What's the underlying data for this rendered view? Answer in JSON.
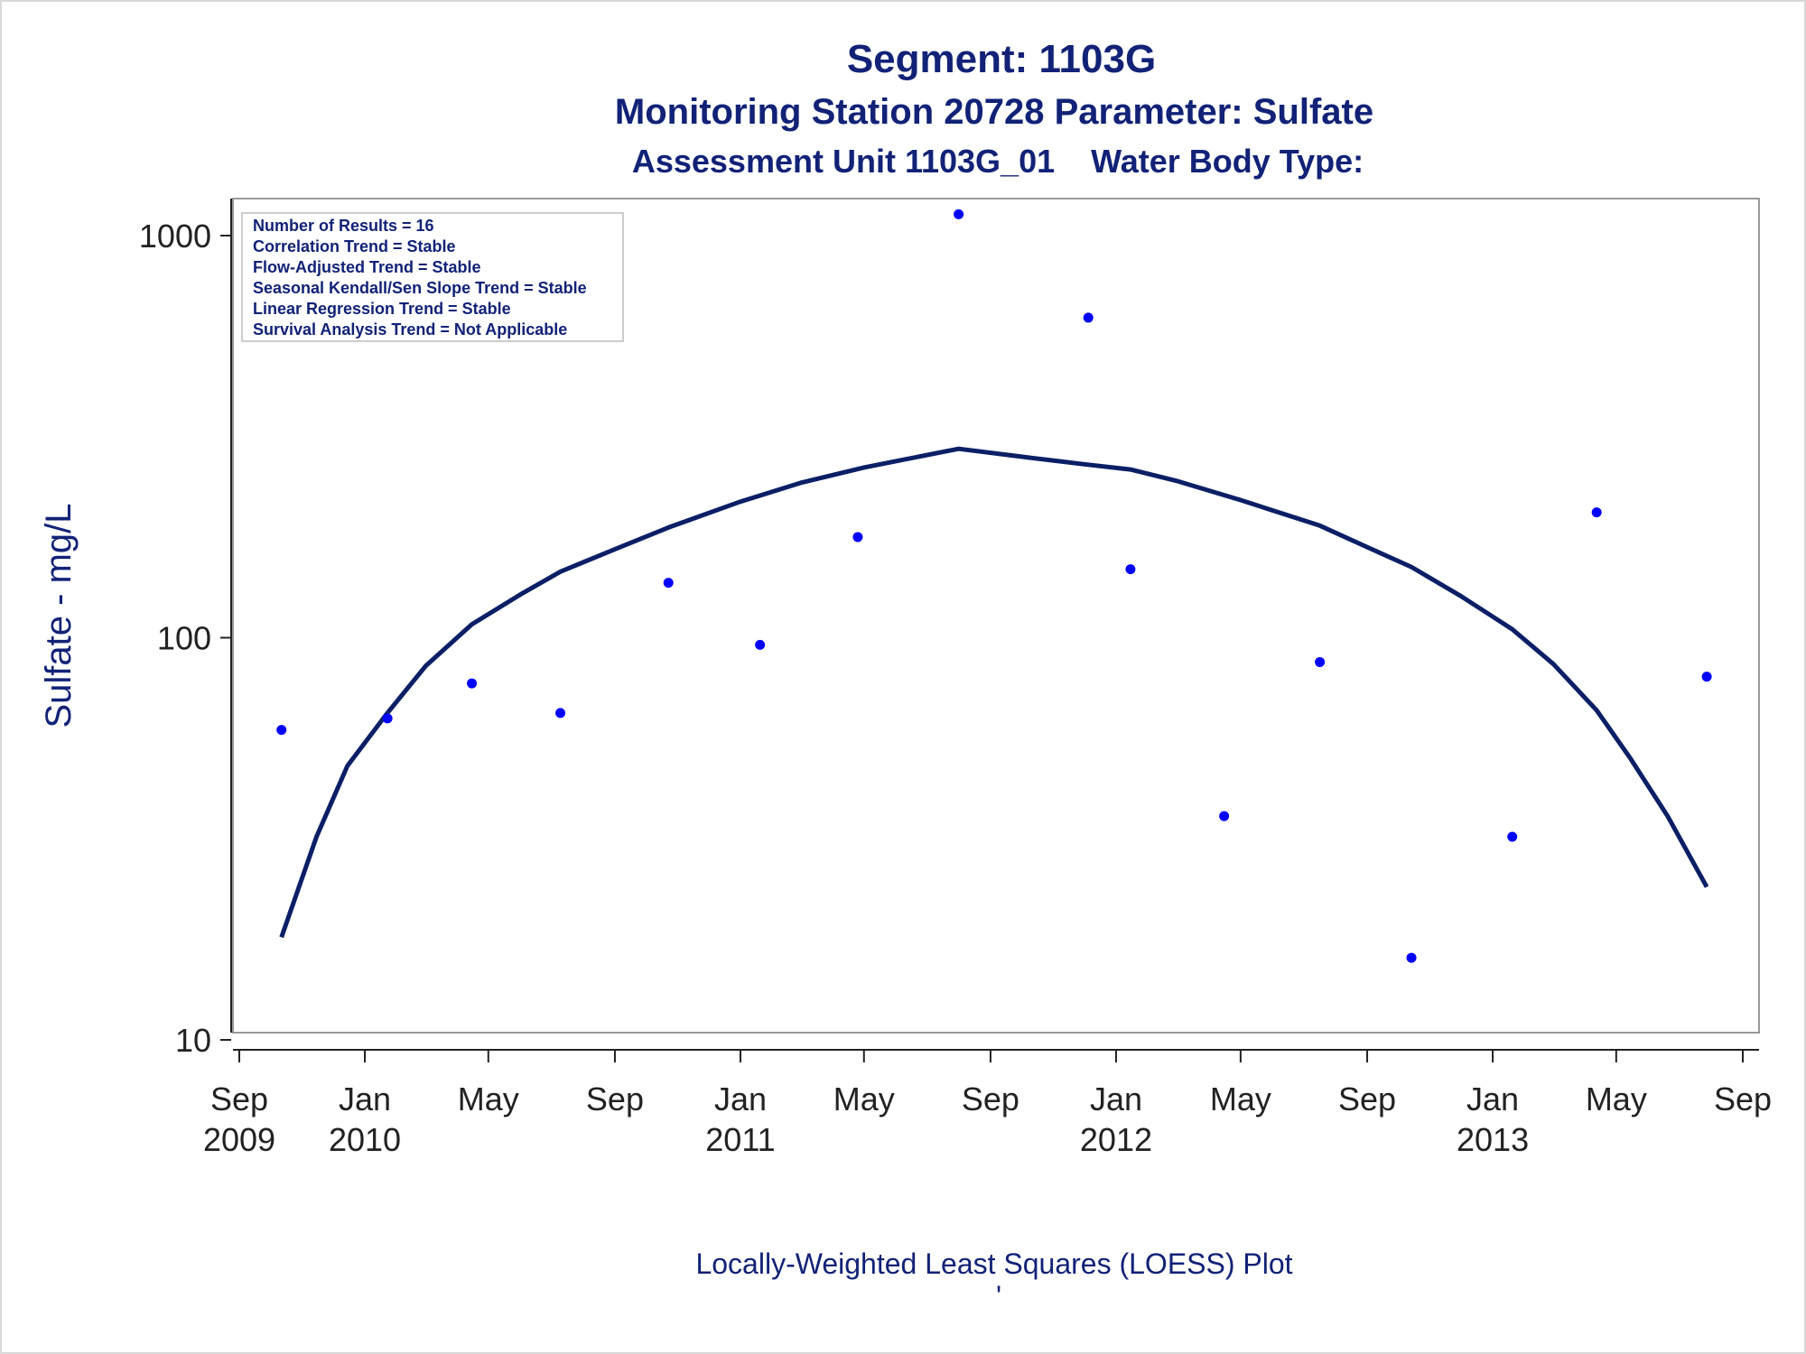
{
  "titles": {
    "line1": "Segment: 1103G",
    "line2": "Monitoring Station 20728 Parameter: Sulfate",
    "line3": "Assessment Unit 1103G_01    Water Body Type:"
  },
  "footnote": "Locally-Weighted Least Squares (LOESS) Plot",
  "footnote_mark": "'",
  "stats_box": [
    "Number of Results = 16",
    "Correlation Trend = Stable",
    "Flow-Adjusted Trend = Stable",
    "Seasonal Kendall/Sen Slope Trend = Stable",
    "Linear Regression Trend = Stable",
    "Survival Analysis Trend = Not Applicable"
  ],
  "colors": {
    "title": "#112277",
    "points": "#0000ff",
    "loess": "#0b1f66",
    "frame": "#999999"
  },
  "chart_data": {
    "type": "scatter",
    "ylabel": "Sulfate - mg/L",
    "y_scale": "log",
    "ylim": [
      10,
      1200
    ],
    "y_ticks": [
      {
        "value": 10,
        "label": "10"
      },
      {
        "value": 100,
        "label": "100"
      },
      {
        "value": 1000,
        "label": "1000"
      }
    ],
    "xlim": [
      "2009-09-01",
      "2013-09-01"
    ],
    "x_ticks": [
      {
        "date": "2009-09-01",
        "label": "Sep",
        "year": "2009"
      },
      {
        "date": "2010-01-01",
        "label": "Jan",
        "year": "2010"
      },
      {
        "date": "2010-05-01",
        "label": "May",
        "year": ""
      },
      {
        "date": "2010-09-01",
        "label": "Sep",
        "year": ""
      },
      {
        "date": "2011-01-01",
        "label": "Jan",
        "year": "2011"
      },
      {
        "date": "2011-05-01",
        "label": "May",
        "year": ""
      },
      {
        "date": "2011-09-01",
        "label": "Sep",
        "year": ""
      },
      {
        "date": "2012-01-01",
        "label": "Jan",
        "year": "2012"
      },
      {
        "date": "2012-05-01",
        "label": "May",
        "year": ""
      },
      {
        "date": "2012-09-01",
        "label": "Sep",
        "year": ""
      },
      {
        "date": "2013-01-01",
        "label": "Jan",
        "year": "2013"
      },
      {
        "date": "2013-05-01",
        "label": "May",
        "year": ""
      },
      {
        "date": "2013-09-01",
        "label": "Sep",
        "year": ""
      }
    ],
    "points": [
      {
        "x": "2009-10-12",
        "y": 59
      },
      {
        "x": "2010-01-23",
        "y": 63
      },
      {
        "x": "2010-04-15",
        "y": 77
      },
      {
        "x": "2010-07-10",
        "y": 65
      },
      {
        "x": "2010-10-23",
        "y": 137
      },
      {
        "x": "2011-01-20",
        "y": 96
      },
      {
        "x": "2011-04-25",
        "y": 178
      },
      {
        "x": "2011-08-01",
        "y": 1130
      },
      {
        "x": "2011-12-05",
        "y": 625
      },
      {
        "x": "2012-01-15",
        "y": 148
      },
      {
        "x": "2012-04-15",
        "y": 36
      },
      {
        "x": "2012-07-17",
        "y": 87
      },
      {
        "x": "2012-10-14",
        "y": 16
      },
      {
        "x": "2013-01-20",
        "y": 32
      },
      {
        "x": "2013-04-12",
        "y": 205
      },
      {
        "x": "2013-07-28",
        "y": 80
      }
    ],
    "loess": [
      {
        "x": "2009-10-12",
        "y": 18
      },
      {
        "x": "2009-11-15",
        "y": 32
      },
      {
        "x": "2009-12-15",
        "y": 48
      },
      {
        "x": "2010-01-23",
        "y": 65
      },
      {
        "x": "2010-03-01",
        "y": 85
      },
      {
        "x": "2010-04-15",
        "y": 108
      },
      {
        "x": "2010-06-01",
        "y": 128
      },
      {
        "x": "2010-07-10",
        "y": 146
      },
      {
        "x": "2010-09-01",
        "y": 166
      },
      {
        "x": "2010-10-23",
        "y": 188
      },
      {
        "x": "2011-01-01",
        "y": 218
      },
      {
        "x": "2011-03-01",
        "y": 243
      },
      {
        "x": "2011-05-01",
        "y": 265
      },
      {
        "x": "2011-08-01",
        "y": 295
      },
      {
        "x": "2011-10-01",
        "y": 282
      },
      {
        "x": "2011-12-01",
        "y": 270
      },
      {
        "x": "2012-01-15",
        "y": 262
      },
      {
        "x": "2012-03-01",
        "y": 245
      },
      {
        "x": "2012-05-01",
        "y": 220
      },
      {
        "x": "2012-07-17",
        "y": 190
      },
      {
        "x": "2012-09-01",
        "y": 168
      },
      {
        "x": "2012-10-14",
        "y": 150
      },
      {
        "x": "2012-12-01",
        "y": 127
      },
      {
        "x": "2013-01-20",
        "y": 105
      },
      {
        "x": "2013-03-01",
        "y": 86
      },
      {
        "x": "2013-04-12",
        "y": 66
      },
      {
        "x": "2013-05-15",
        "y": 50
      },
      {
        "x": "2013-06-20",
        "y": 36
      },
      {
        "x": "2013-07-28",
        "y": 24
      }
    ]
  }
}
